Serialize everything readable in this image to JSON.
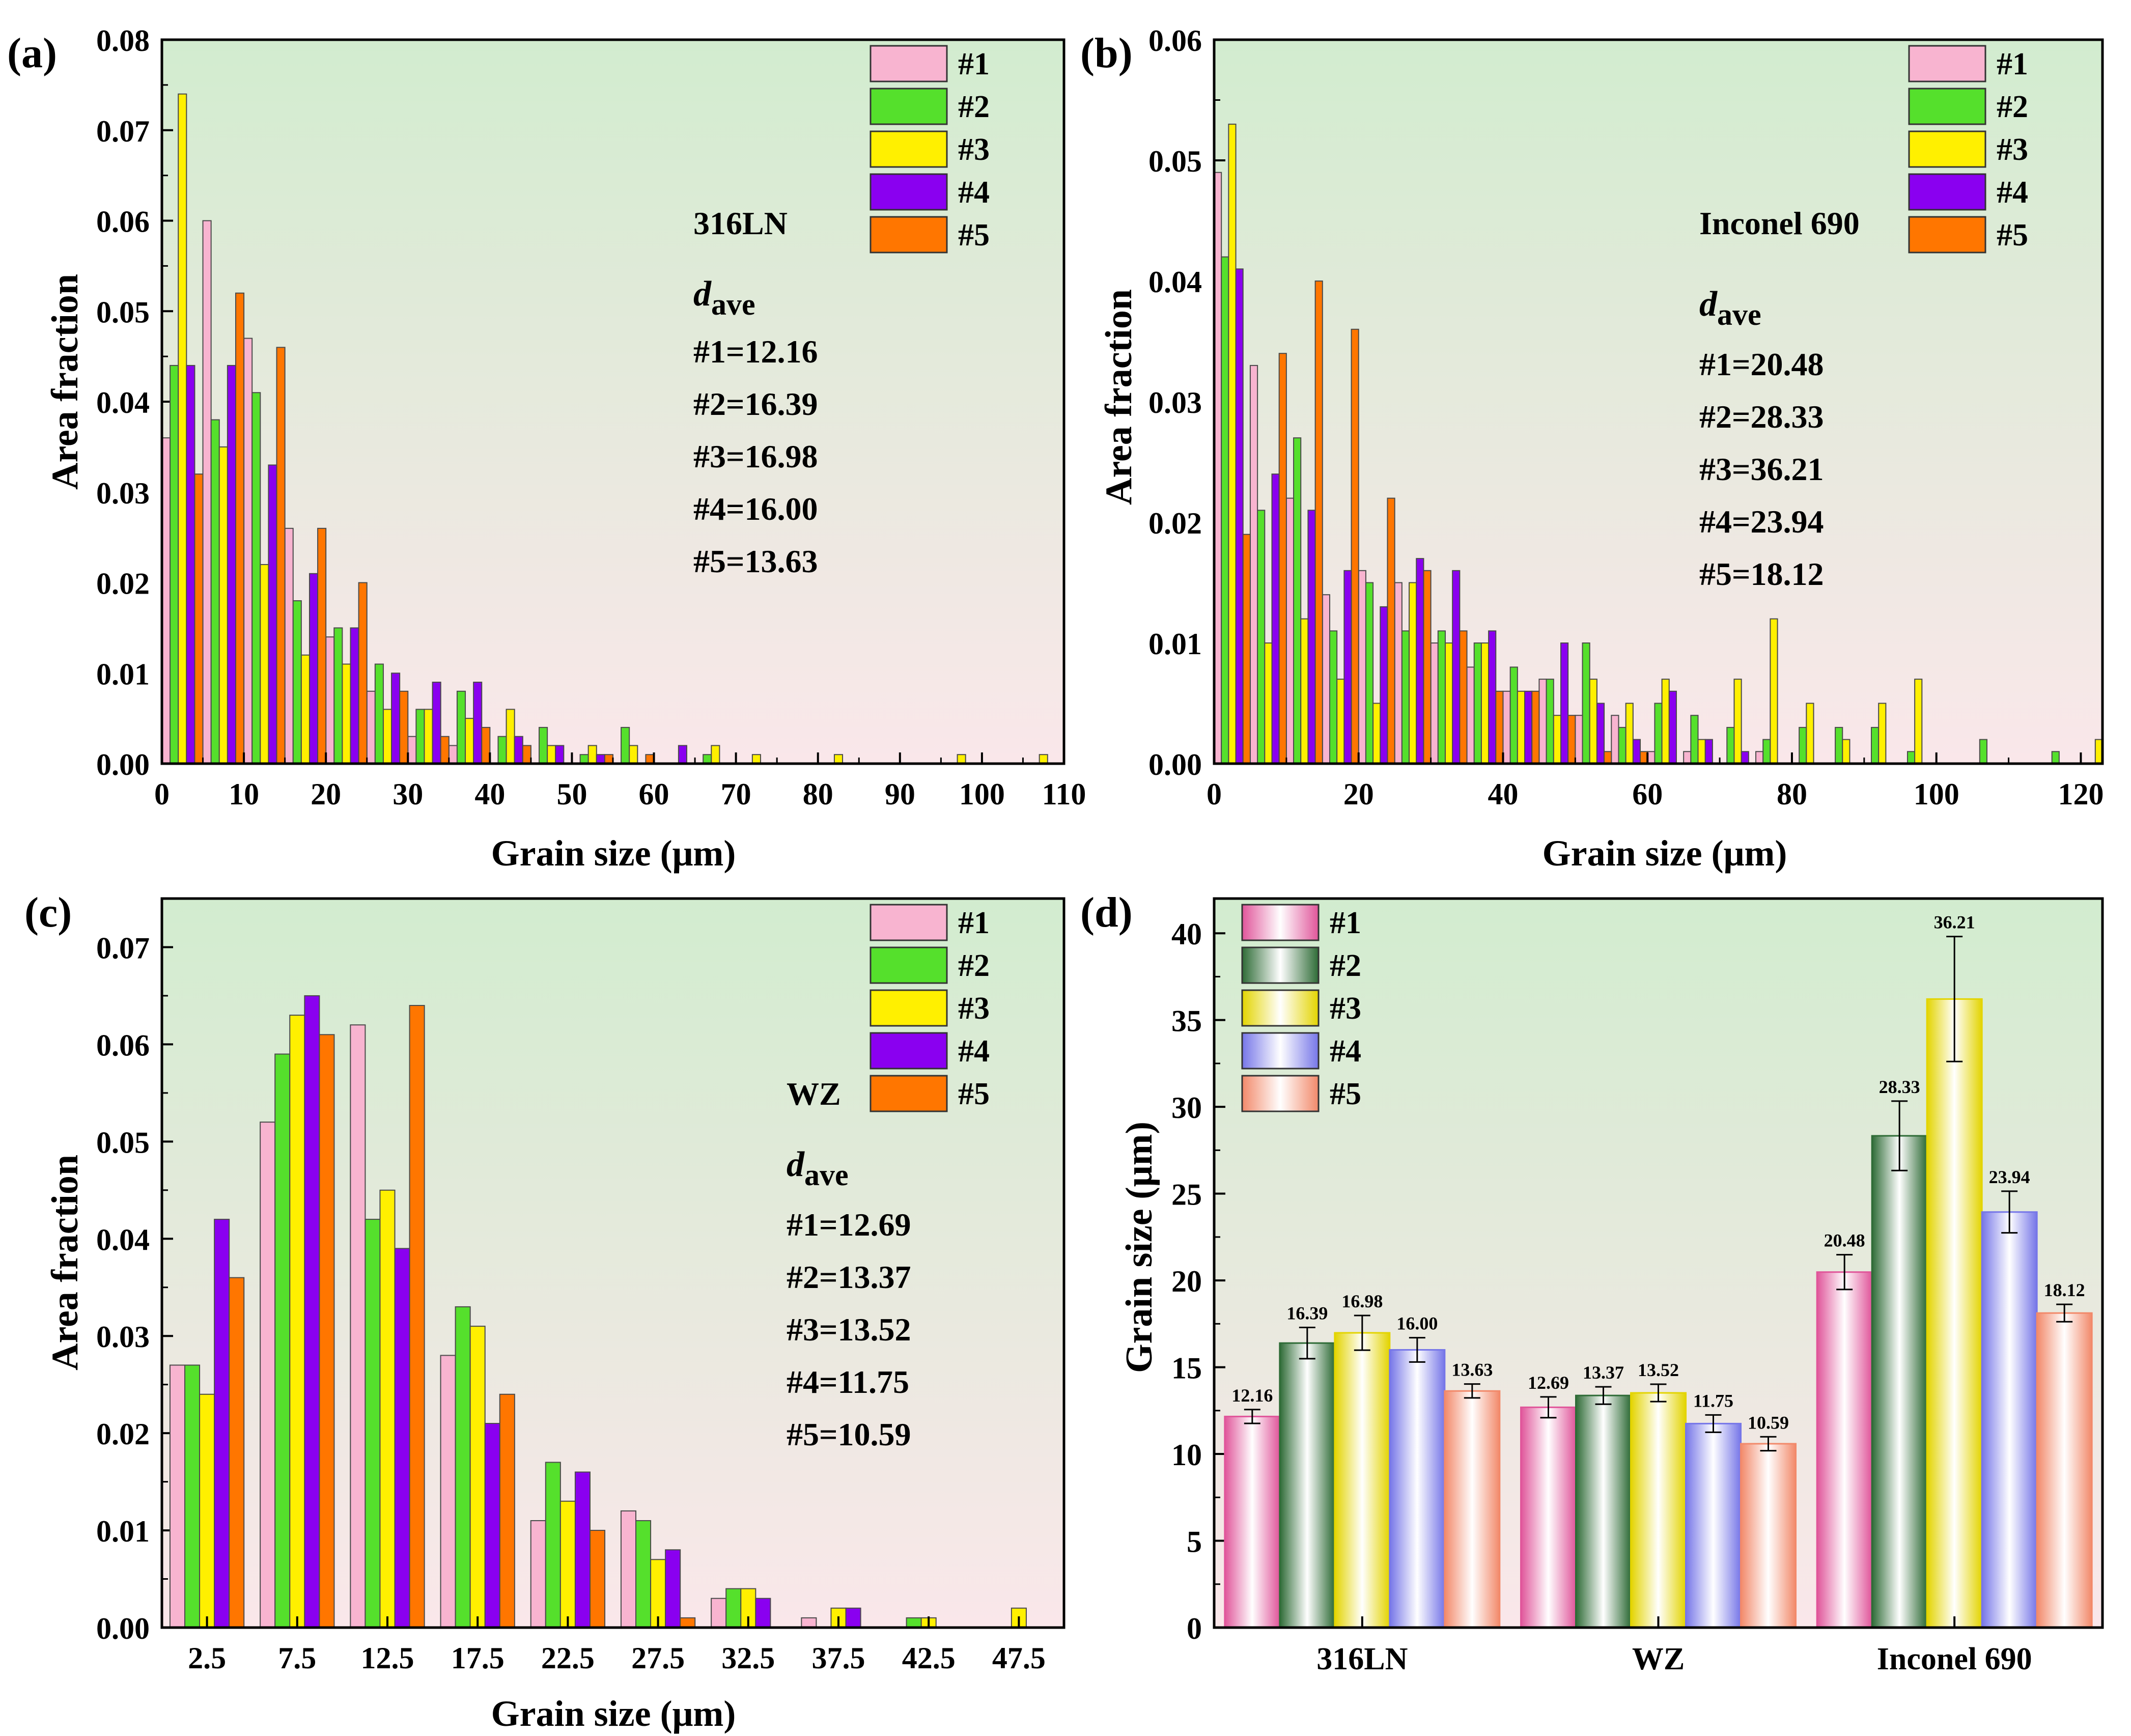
{
  "chart_data": [
    {
      "panel_label": "(a)",
      "type": "bar",
      "material": "316LN",
      "xlabel": "Grain size (μm)",
      "ylabel": "Area fraction",
      "xlim": [
        0,
        110
      ],
      "ylim": [
        0,
        0.08
      ],
      "x_ticks": [
        "0",
        "10",
        "20",
        "30",
        "40",
        "50",
        "60",
        "70",
        "80",
        "90",
        "100",
        "110"
      ],
      "y_ticks": [
        "0.00",
        "0.01",
        "0.02",
        "0.03",
        "0.04",
        "0.05",
        "0.06",
        "0.07",
        "0.08"
      ],
      "bin_width": 5,
      "x": [
        2.5,
        7.5,
        12.5,
        17.5,
        22.5,
        27.5,
        32.5,
        37.5,
        42.5,
        47.5,
        52.5,
        57.5,
        62.5,
        67.5,
        72.5,
        77.5,
        82.5,
        87.5,
        92.5,
        97.5,
        102.5,
        107.5
      ],
      "series": [
        {
          "name": "#1",
          "values": [
            0.036,
            0.06,
            0.047,
            0.026,
            0.014,
            0.008,
            0.003,
            0.002,
            0,
            0,
            0,
            0,
            0,
            0,
            0,
            0,
            0,
            0,
            0,
            0,
            0,
            0
          ]
        },
        {
          "name": "#2",
          "values": [
            0.044,
            0.038,
            0.041,
            0.018,
            0.015,
            0.011,
            0.006,
            0.008,
            0.003,
            0.004,
            0.001,
            0.004,
            0,
            0.001,
            0,
            0,
            0,
            0,
            0,
            0,
            0,
            0
          ]
        },
        {
          "name": "#3",
          "values": [
            0.074,
            0.035,
            0.022,
            0.012,
            0.011,
            0.006,
            0.006,
            0.005,
            0.006,
            0.002,
            0.002,
            0.002,
            0,
            0.002,
            0.001,
            0,
            0.001,
            0,
            0,
            0.001,
            0,
            0.001
          ]
        },
        {
          "name": "#4",
          "values": [
            0.044,
            0.044,
            0.033,
            0.021,
            0.015,
            0.01,
            0.009,
            0.009,
            0.003,
            0.002,
            0.001,
            0,
            0.002,
            0,
            0,
            0,
            0,
            0,
            0,
            0,
            0,
            0
          ]
        },
        {
          "name": "#5",
          "values": [
            0.032,
            0.052,
            0.046,
            0.026,
            0.02,
            0.008,
            0.003,
            0.004,
            0.002,
            0,
            0.001,
            0.001,
            0,
            0,
            0,
            0,
            0,
            0,
            0,
            0,
            0,
            0
          ]
        }
      ],
      "legend": [
        "#1",
        "#2",
        "#3",
        "#4",
        "#5"
      ],
      "legend_position": "top-right",
      "annotation": {
        "title": "316LN",
        "dave_main": "d",
        "dave_sub": "ave",
        "lines": [
          "#1=12.16",
          "#2=16.39",
          "#3=16.98",
          "#4=16.00",
          "#5=13.63"
        ]
      }
    },
    {
      "panel_label": "(b)",
      "type": "bar",
      "material": "Inconel 690",
      "xlabel": "Grain size (μm)",
      "ylabel": "Area fraction",
      "xlim": [
        0,
        123
      ],
      "ylim": [
        0,
        0.06
      ],
      "x_ticks": [
        "0",
        "20",
        "40",
        "60",
        "80",
        "100",
        "120"
      ],
      "x_tick_values": [
        0,
        20,
        40,
        60,
        80,
        100,
        120
      ],
      "y_ticks": [
        "0.00",
        "0.01",
        "0.02",
        "0.03",
        "0.04",
        "0.05",
        "0.06"
      ],
      "bin_width": 5,
      "x": [
        2.5,
        7.5,
        12.5,
        17.5,
        22.5,
        27.5,
        32.5,
        37.5,
        42.5,
        47.5,
        52.5,
        57.5,
        62.5,
        67.5,
        72.5,
        77.5,
        82.5,
        87.5,
        92.5,
        97.5,
        102.5,
        107.5,
        112.5,
        117.5,
        122.5
      ],
      "series": [
        {
          "name": "#1",
          "values": [
            0.049,
            0.033,
            0.022,
            0.014,
            0.016,
            0.015,
            0.01,
            0.008,
            0.006,
            0.007,
            0.004,
            0.004,
            0.001,
            0.001,
            0,
            0.001,
            0,
            0,
            0,
            0,
            0,
            0,
            0,
            0,
            0
          ]
        },
        {
          "name": "#2",
          "values": [
            0.042,
            0.021,
            0.027,
            0.011,
            0.015,
            0.011,
            0.011,
            0.01,
            0.008,
            0.007,
            0.01,
            0.003,
            0.005,
            0.004,
            0.003,
            0.002,
            0.003,
            0.003,
            0.003,
            0.001,
            0,
            0.002,
            0,
            0.001,
            0
          ]
        },
        {
          "name": "#3",
          "values": [
            0.053,
            0.01,
            0.012,
            0.007,
            0.005,
            0.015,
            0.01,
            0.01,
            0.006,
            0.004,
            0.007,
            0.005,
            0.007,
            0.002,
            0.007,
            0.012,
            0.005,
            0.002,
            0.005,
            0.007,
            0,
            0,
            0,
            0,
            0.002
          ]
        },
        {
          "name": "#4",
          "values": [
            0.041,
            0.024,
            0.021,
            0.016,
            0.013,
            0.017,
            0.016,
            0.011,
            0.006,
            0.01,
            0.005,
            0.002,
            0.006,
            0.002,
            0.001,
            0,
            0,
            0,
            0,
            0,
            0,
            0,
            0,
            0,
            0
          ]
        },
        {
          "name": "#5",
          "values": [
            0.019,
            0.034,
            0.04,
            0.036,
            0.022,
            0.016,
            0.011,
            0.006,
            0.006,
            0.004,
            0.001,
            0.001,
            0,
            0,
            0,
            0,
            0,
            0,
            0,
            0,
            0,
            0,
            0,
            0,
            0
          ]
        }
      ],
      "legend": [
        "#1",
        "#2",
        "#3",
        "#4",
        "#5"
      ],
      "legend_position": "top-right",
      "annotation": {
        "title": "Inconel 690",
        "dave_main": "d",
        "dave_sub": "ave",
        "lines": [
          "#1=20.48",
          "#2=28.33",
          "#3=36.21",
          "#4=23.94",
          "#5=18.12"
        ]
      }
    },
    {
      "panel_label": "(c)",
      "type": "bar",
      "material": "WZ",
      "xlabel": "Grain size (μm)",
      "ylabel": "Area fraction",
      "ylim": [
        0,
        0.075
      ],
      "categories": [
        "2.5",
        "7.5",
        "12.5",
        "17.5",
        "22.5",
        "27.5",
        "32.5",
        "37.5",
        "42.5",
        "47.5"
      ],
      "y_ticks": [
        "0.00",
        "0.01",
        "0.02",
        "0.03",
        "0.04",
        "0.05",
        "0.06",
        "0.07"
      ],
      "series": [
        {
          "name": "#1",
          "values": [
            0.027,
            0.052,
            0.062,
            0.028,
            0.011,
            0.012,
            0.003,
            0.001,
            0,
            0
          ]
        },
        {
          "name": "#2",
          "values": [
            0.027,
            0.059,
            0.042,
            0.033,
            0.017,
            0.011,
            0.004,
            0,
            0.001,
            0
          ]
        },
        {
          "name": "#3",
          "values": [
            0.024,
            0.063,
            0.045,
            0.031,
            0.013,
            0.007,
            0.004,
            0.002,
            0.001,
            0.002
          ]
        },
        {
          "name": "#4",
          "values": [
            0.042,
            0.065,
            0.039,
            0.021,
            0.016,
            0.008,
            0.003,
            0.002,
            0,
            0
          ]
        },
        {
          "name": "#5",
          "values": [
            0.036,
            0.061,
            0.064,
            0.024,
            0.01,
            0.001,
            0,
            0,
            0,
            0
          ]
        }
      ],
      "legend": [
        "#1",
        "#2",
        "#3",
        "#4",
        "#5"
      ],
      "legend_position": "top-right",
      "annotation": {
        "title": "WZ",
        "dave_main": "d",
        "dave_sub": "ave",
        "lines": [
          "#1=12.69",
          "#2=13.37",
          "#3=13.52",
          "#4=11.75",
          "#5=10.59"
        ]
      }
    },
    {
      "panel_label": "(d)",
      "type": "bar",
      "xlabel": "",
      "ylabel": "Grain size (μm)",
      "ylim": [
        0,
        42
      ],
      "y_ticks": [
        "0",
        "5",
        "10",
        "15",
        "20",
        "25",
        "30",
        "35",
        "40"
      ],
      "categories": [
        "316LN",
        "WZ",
        "Inconel 690"
      ],
      "series": [
        {
          "name": "#1",
          "values": [
            12.16,
            12.69,
            20.48
          ],
          "labels": [
            "12.16",
            "12.69",
            "20.48"
          ],
          "errors": [
            0.4,
            0.6,
            1.0
          ]
        },
        {
          "name": "#2",
          "values": [
            16.39,
            13.37,
            28.33
          ],
          "labels": [
            "16.39",
            "13.37",
            "28.33"
          ],
          "errors": [
            0.9,
            0.5,
            2.0
          ]
        },
        {
          "name": "#3",
          "values": [
            16.98,
            13.52,
            36.21
          ],
          "labels": [
            "16.98",
            "13.52",
            "36.21"
          ],
          "errors": [
            1.0,
            0.5,
            3.6
          ]
        },
        {
          "name": "#4",
          "values": [
            16.0,
            11.75,
            23.94
          ],
          "labels": [
            "16.00",
            "11.75",
            "23.94"
          ],
          "errors": [
            0.7,
            0.5,
            1.2
          ]
        },
        {
          "name": "#5",
          "values": [
            13.63,
            10.59,
            18.12
          ],
          "labels": [
            "13.63",
            "10.59",
            "18.12"
          ],
          "errors": [
            0.4,
            0.4,
            0.5
          ]
        }
      ],
      "legend": [
        "#1",
        "#2",
        "#3",
        "#4",
        "#5"
      ],
      "legend_position": "top-left"
    }
  ],
  "colors": {
    "hist": [
      "#F8B4D0",
      "#55E02C",
      "#FFF000",
      "#8A00F0",
      "#FF7600"
    ],
    "summary_edge": [
      "#E0559A",
      "#2E6B36",
      "#E3D400",
      "#7676E8",
      "#F2896A"
    ],
    "bg_top": "#D2ECCF",
    "bg_bottom": "#FAE7EA"
  }
}
